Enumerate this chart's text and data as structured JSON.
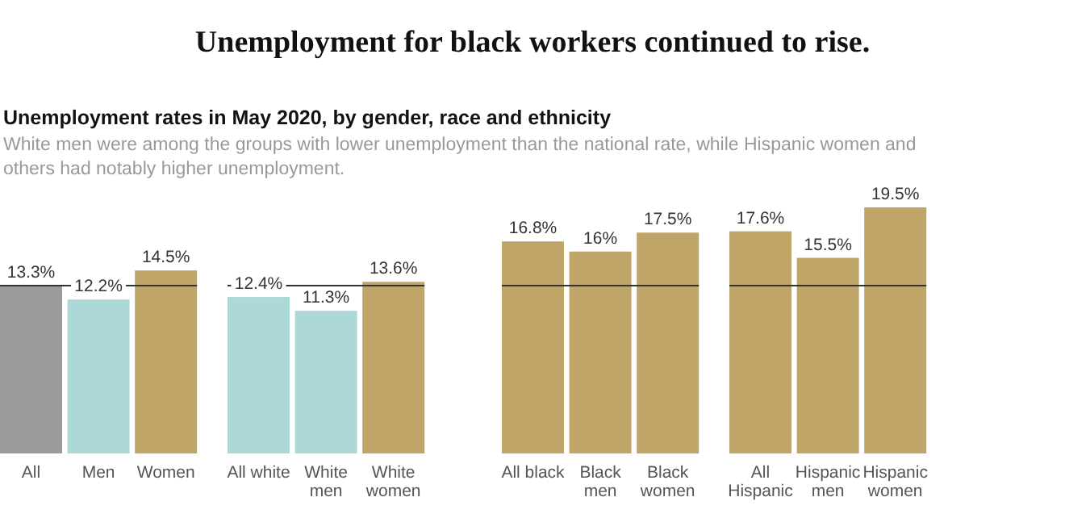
{
  "chart_data": {
    "type": "bar",
    "title": "Unemployment for black workers continued to rise.",
    "subtitle": "Unemployment rates in May 2020, by gender, race and ethnicity",
    "annotations": [
      "White men were among the groups with lower unemployment than the national rate, while Hispanic women and others had notably higher unemployment."
    ],
    "categories": [
      "All",
      "Men",
      "Women",
      "All white",
      "White\nmen",
      "White\nwomen",
      "All black",
      "Black\nmen",
      "Black\nwomen",
      "All\nHispanic",
      "Hispanic\nmen",
      "Hispanic\nwomen"
    ],
    "values": [
      13.3,
      12.2,
      14.5,
      12.4,
      11.3,
      13.6,
      16.8,
      16,
      17.5,
      17.6,
      15.5,
      19.5
    ],
    "value_labels": [
      "13.3%",
      "12.2%",
      "14.5%",
      "12.4%",
      "11.3%",
      "13.6%",
      "16.8%",
      "16%",
      "17.5%",
      "17.6%",
      "15.5%",
      "19.5%"
    ],
    "colors": [
      "#9b9b9b",
      "#acd8d8",
      "#bfa567",
      "#acd8d8",
      "#acd8d8",
      "#bfa567",
      "#bfa567",
      "#bfa567",
      "#bfa567",
      "#bfa567",
      "#bfa567",
      "#bfa567"
    ],
    "ref_lines": [
      {
        "axis": "y",
        "value": 13.3,
        "color": "#333333"
      }
    ]
  }
}
